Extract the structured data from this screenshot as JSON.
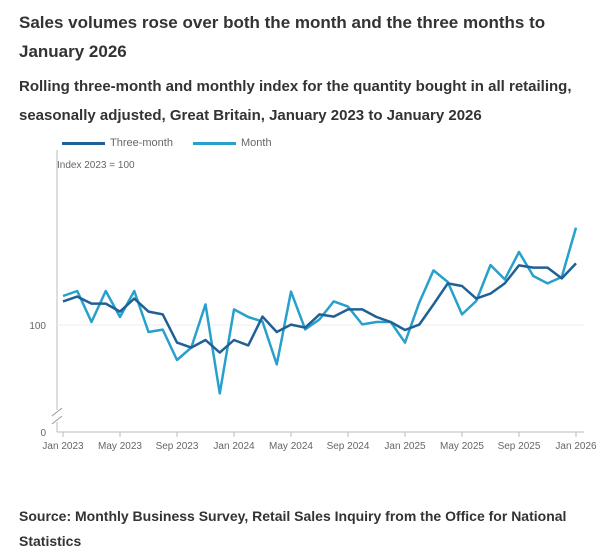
{
  "title": "Sales volumes rose over both the month and the three months to January 2026",
  "subtitle": "Rolling three-month and monthly index for the quantity bought in all retailing, seasonally adjusted, Great Britain, January 2023 to January 2026",
  "source": "Source: Monthly Business Survey, Retail Sales Inquiry from the Office for National Statistics",
  "chart_data": {
    "type": "line",
    "ylabel": "Index 2023 = 100",
    "y_ticks": [
      0,
      100
    ],
    "y_axis_break": true,
    "ylim": [
      95.75,
      108.75
    ],
    "grid": "y=100 only",
    "legend_placement": "top-left",
    "x_tick_labels": [
      "Jan 2023",
      "May 2023",
      "Sep 2023",
      "Jan 2024",
      "May 2024",
      "Sep 2024",
      "Jan 2025",
      "May 2025",
      "Sep 2025",
      "Jan 2026"
    ],
    "x_start": "Jan 2023",
    "x_end": "Jan 2026",
    "series": [
      {
        "name": "Three-month",
        "color": "#206095",
        "values": [
          101.18,
          101.42,
          101.07,
          101.07,
          100.67,
          101.32,
          100.67,
          100.53,
          99.12,
          98.87,
          99.25,
          98.62,
          99.25,
          98.98,
          100.42,
          99.65,
          100.02,
          99.87,
          100.53,
          100.42,
          100.78,
          100.78,
          100.4,
          100.15,
          99.75,
          100.02,
          101.03,
          102.08,
          101.95,
          101.32,
          101.57,
          102.08,
          102.98,
          102.87,
          102.87,
          102.33,
          103.08
        ]
      },
      {
        "name": "Month",
        "color": "#27a0cc",
        "values": [
          101.45,
          101.7,
          100.15,
          101.7,
          100.4,
          101.7,
          99.65,
          99.77,
          98.25,
          98.87,
          101.03,
          96.58,
          100.78,
          100.4,
          100.17,
          98.03,
          101.67,
          99.78,
          100.28,
          101.18,
          100.92,
          100.03,
          100.15,
          100.15,
          99.12,
          101.12,
          102.73,
          102.15,
          100.53,
          101.2,
          103.0,
          102.28,
          103.65,
          102.45,
          102.08,
          102.4,
          104.87
        ]
      }
    ]
  }
}
